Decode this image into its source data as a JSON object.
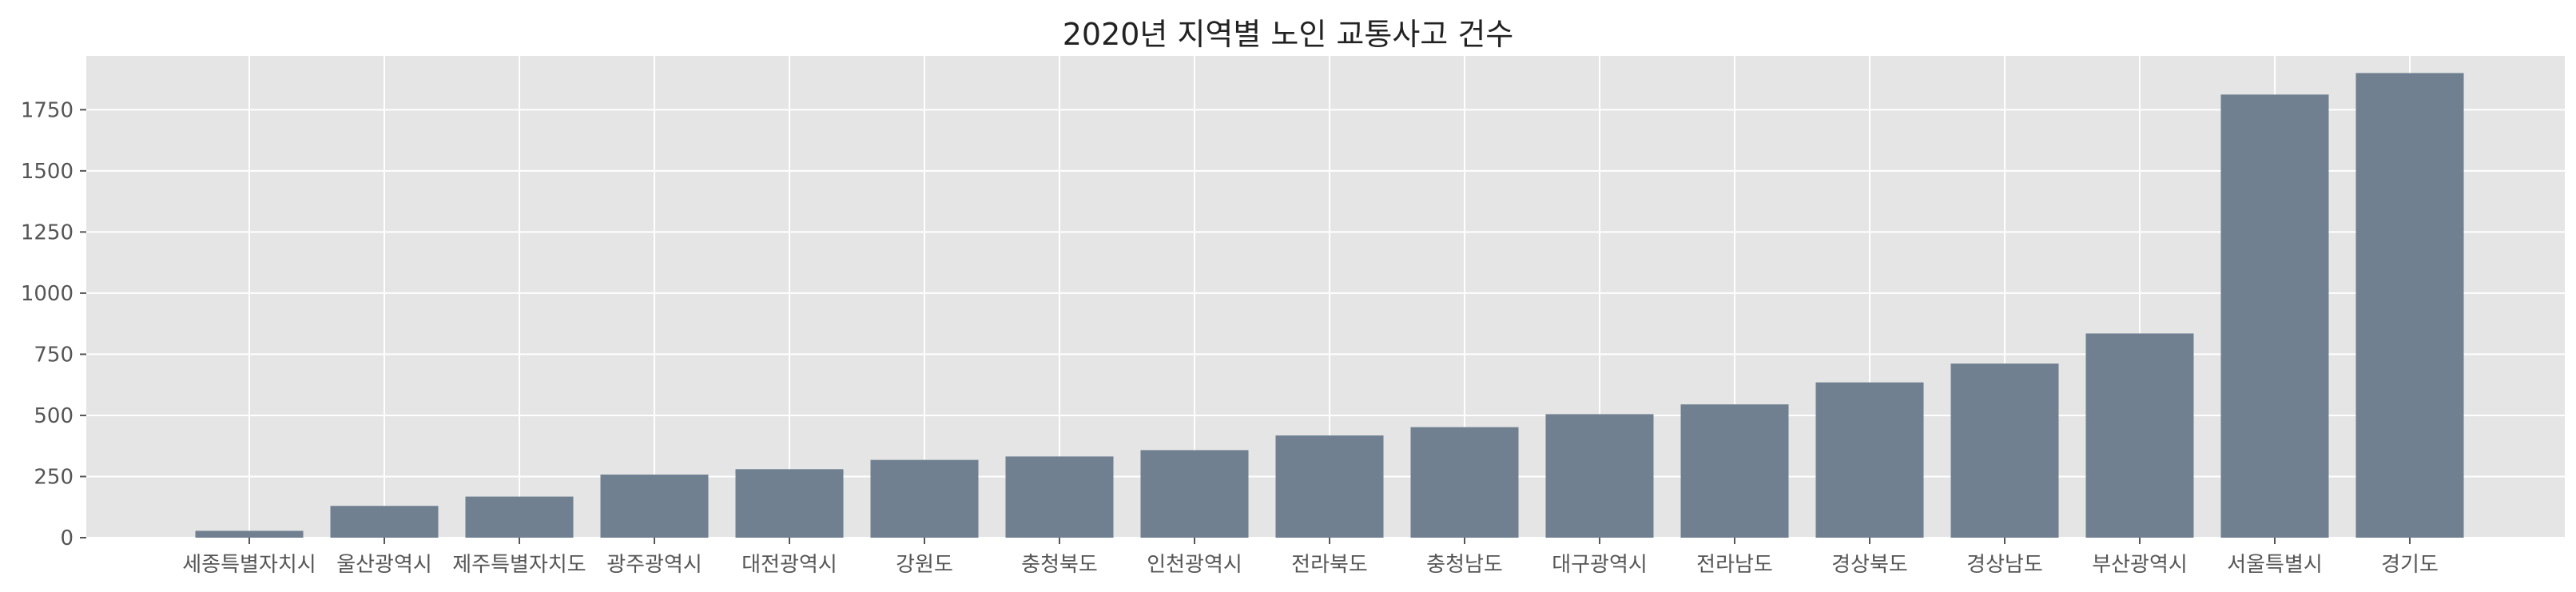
{
  "chart_data": {
    "type": "bar",
    "title": "2020년 지역별 노인 교통사고 건수",
    "xlabel": "",
    "ylabel": "",
    "categories": [
      "세종특별자치시",
      "울산광역시",
      "제주특별자치도",
      "광주광역시",
      "대전광역시",
      "강원도",
      "충청북도",
      "인천광역시",
      "전라북도",
      "충청남도",
      "대구광역시",
      "전라남도",
      "경상북도",
      "경상남도",
      "부산광역시",
      "서울특별시",
      "경기도"
    ],
    "values": [
      28,
      130,
      168,
      258,
      280,
      318,
      332,
      358,
      418,
      452,
      505,
      545,
      635,
      712,
      835,
      1812,
      1900
    ],
    "ylim": [
      0,
      1970
    ],
    "yticks": [
      0,
      250,
      500,
      750,
      1000,
      1250,
      1500,
      1750
    ],
    "grid": true,
    "colors": {
      "bar": "#708090",
      "plot_bg": "#e5e5e5",
      "grid": "#ffffff"
    }
  }
}
